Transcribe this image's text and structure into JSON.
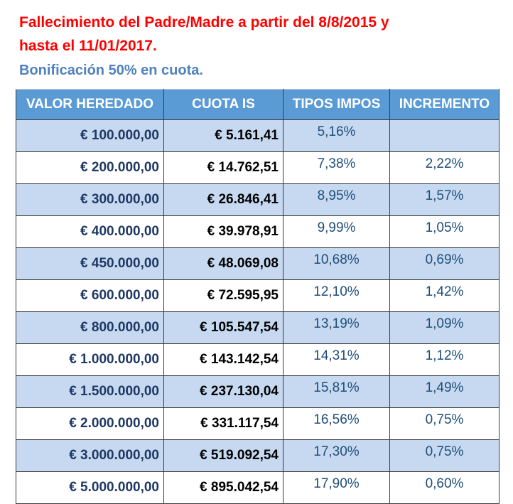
{
  "header": {
    "title_lines": [
      "Fallecimiento del Padre/Madre a partir del 8/8/2015 y",
      "hasta el 11/01/2017."
    ],
    "subtitle": "Bonificación 50% en cuota."
  },
  "table": {
    "columns": [
      "VALOR HEREDADO",
      "CUOTA IS",
      "TIPOS IMPOS",
      "INCREMENTO"
    ],
    "rows": [
      [
        "€ 100.000,00",
        "€ 5.161,41",
        "5,16%",
        null
      ],
      [
        "€ 200.000,00",
        "€ 14.762,51",
        "7,38%",
        "2,22%"
      ],
      [
        "€ 300.000,00",
        "€ 26.846,41",
        "8,95%",
        "1,57%"
      ],
      [
        "€ 400.000,00",
        "€ 39.978,91",
        "9,99%",
        "1,05%"
      ],
      [
        "€ 450.000,00",
        "€ 48.069,08",
        "10,68%",
        "0,69%"
      ],
      [
        "€ 600.000,00",
        "€ 72.595,95",
        "12,10%",
        "1,42%"
      ],
      [
        "€ 800.000,00",
        "€ 105.547,54",
        "13,19%",
        "1,09%"
      ],
      [
        "€ 1.000.000,00",
        "€ 143.142,54",
        "14,31%",
        "1,12%"
      ],
      [
        "€ 1.500.000,00",
        "€ 237.130,04",
        "15,81%",
        "1,49%"
      ],
      [
        "€ 2.000.000,00",
        "€ 331.117,54",
        "16,56%",
        "0,75%"
      ],
      [
        "€ 3.000.000,00",
        "€ 519.092,54",
        "17,30%",
        "0,75%"
      ],
      [
        "€ 5.000.000,00",
        "€ 895.042,54",
        "17,90%",
        "0,60%"
      ]
    ]
  }
}
